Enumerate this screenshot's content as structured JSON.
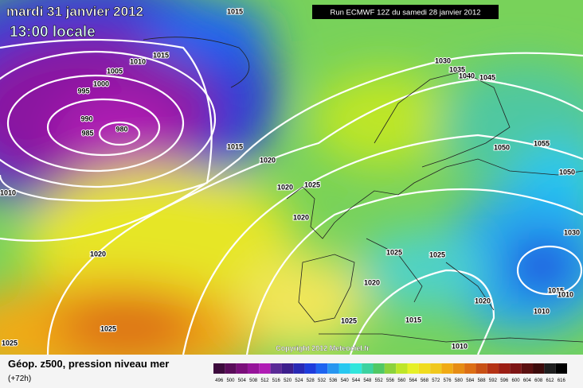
{
  "header": {
    "date": "mardi 31 janvier 2012",
    "time": "13:00 locale",
    "run": "Run ECMWF 12Z du samedi 28 janvier 2012"
  },
  "copyright": "Copyright 2012 Meteociel.fr",
  "isobars": [
    1015,
    1015,
    1010,
    1005,
    1000,
    995,
    990,
    985,
    980,
    1015,
    1020,
    1020,
    1025,
    1020,
    1020,
    1010,
    1030,
    1035,
    1040,
    1045,
    1050,
    1055,
    1050,
    1030,
    1025,
    1025,
    1020,
    1020,
    1015,
    1010,
    1010,
    1025,
    1015,
    1010,
    1025,
    1025
  ],
  "legend": {
    "title": "Géop. z500, pression niveau mer",
    "subtitle": "(+72h)",
    "values": [
      496,
      500,
      504,
      508,
      512,
      516,
      520,
      524,
      528,
      532,
      536,
      540,
      544,
      548,
      552,
      556,
      560,
      564,
      568,
      572,
      576,
      580,
      584,
      588,
      592,
      596,
      600,
      604,
      608,
      612,
      616
    ],
    "colors": [
      "#3c0a3c",
      "#5a0c5a",
      "#7a0e7a",
      "#96149a",
      "#b01cb4",
      "#5a2a96",
      "#3c1e8c",
      "#2828b4",
      "#1e3cdc",
      "#1e64f0",
      "#2896f0",
      "#28c8f0",
      "#32e6dc",
      "#3cd2a0",
      "#50c864",
      "#8cd23c",
      "#bee628",
      "#e6f028",
      "#f0dc1e",
      "#f0c81e",
      "#f0aa14",
      "#e68c14",
      "#dc6e14",
      "#c85014",
      "#b43214",
      "#9b1e14",
      "#7d1414",
      "#5a0f0f",
      "#3c0a0a",
      "#1e1e1e",
      "#000000"
    ]
  }
}
